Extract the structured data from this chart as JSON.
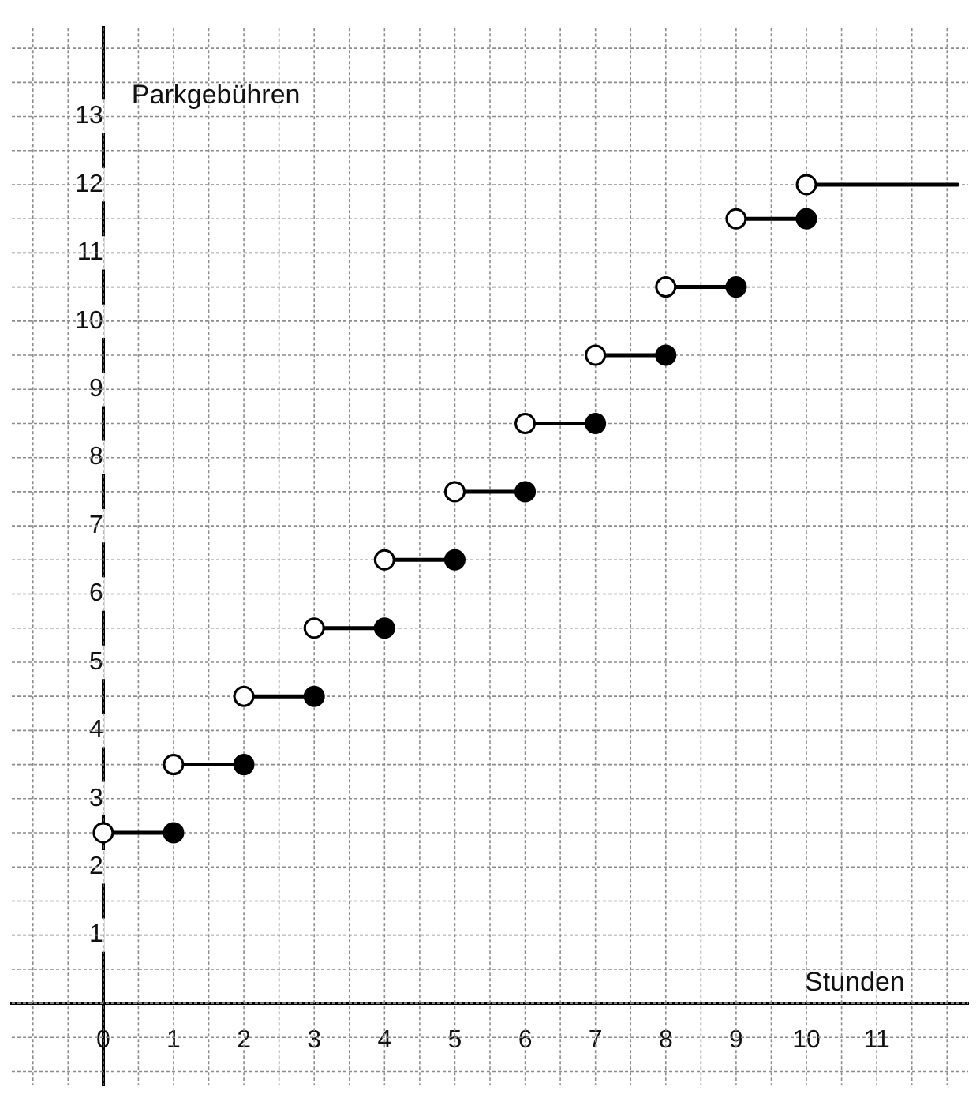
{
  "chart_data": {
    "type": "line",
    "xlabel": "Stunden",
    "ylabel": "Parkgebühren",
    "xlim": [
      -1.3,
      12.3
    ],
    "ylim": [
      -1.2,
      14.3
    ],
    "xticks": [
      0,
      1,
      2,
      3,
      4,
      5,
      6,
      7,
      8,
      9,
      10,
      11
    ],
    "yticks": [
      1,
      2,
      3,
      4,
      5,
      6,
      7,
      8,
      9,
      10,
      11,
      12,
      13
    ],
    "grid": true,
    "legend": false,
    "marker": "circle",
    "series": [
      {
        "color": "#000000",
        "marker": "none",
        "x": [
          0,
          1
        ],
        "values": [
          2.5,
          2.5
        ]
      },
      {
        "color": "#000000",
        "marker": "none",
        "x": [
          1,
          2
        ],
        "values": [
          3.5,
          3.5
        ]
      },
      {
        "color": "#000000",
        "marker": "none",
        "x": [
          2,
          3
        ],
        "values": [
          4.5,
          4.5
        ]
      },
      {
        "color": "#000000",
        "marker": "none",
        "x": [
          3,
          4
        ],
        "values": [
          5.5,
          5.5
        ]
      },
      {
        "color": "#000000",
        "marker": "none",
        "x": [
          4,
          5
        ],
        "values": [
          6.5,
          6.5
        ]
      },
      {
        "color": "#000000",
        "marker": "none",
        "x": [
          5,
          6
        ],
        "values": [
          7.5,
          7.5
        ]
      },
      {
        "color": "#000000",
        "marker": "none",
        "x": [
          6,
          7
        ],
        "values": [
          8.5,
          8.5
        ]
      },
      {
        "color": "#000000",
        "marker": "none",
        "x": [
          7,
          8
        ],
        "values": [
          9.5,
          9.5
        ]
      },
      {
        "color": "#000000",
        "marker": "none",
        "x": [
          8,
          9
        ],
        "values": [
          10.5,
          10.5
        ]
      },
      {
        "color": "#000000",
        "marker": "none",
        "x": [
          9,
          10
        ],
        "values": [
          11.5,
          11.5
        ]
      },
      {
        "color": "#000000",
        "marker": "none",
        "x": [
          10,
          12.15
        ],
        "values": [
          12,
          12
        ]
      },
      {
        "type": "scatter",
        "color": "#ffffff",
        "x": [
          0,
          1,
          2,
          3,
          4,
          5,
          6,
          7,
          8,
          9,
          10
        ],
        "values": [
          2.5,
          3.5,
          4.5,
          5.5,
          6.5,
          7.5,
          8.5,
          9.5,
          10.5,
          11.5,
          12
        ]
      },
      {
        "type": "scatter",
        "color": "#000000",
        "x": [
          1,
          2,
          3,
          4,
          5,
          6,
          7,
          8,
          9,
          10
        ],
        "values": [
          2.5,
          3.5,
          4.5,
          5.5,
          6.5,
          7.5,
          8.5,
          9.5,
          10.5,
          11.5
        ]
      }
    ]
  }
}
